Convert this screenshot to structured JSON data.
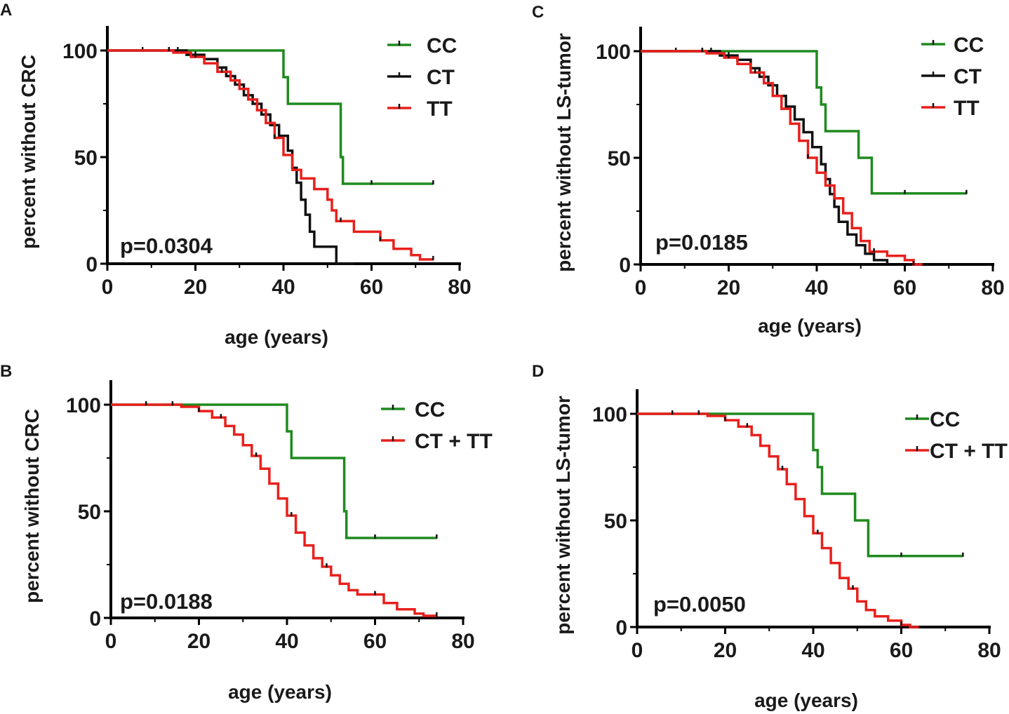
{
  "chart_data": [
    {
      "panel": "A",
      "type": "line",
      "subtype": "kaplan-meier",
      "xlabel": "age (years)",
      "ylabel": "percent without CRC",
      "xlim": [
        0,
        80
      ],
      "ylim": [
        0,
        100
      ],
      "xticks": [
        "0",
        "20",
        "40",
        "60",
        "80"
      ],
      "yticks": [
        "0",
        "50",
        "100"
      ],
      "pvalue": "p=0.0304",
      "legend_position": "top-right",
      "series": [
        {
          "name": "CC",
          "color": "#1f8a1f",
          "x": [
            0,
            40,
            40,
            41,
            41,
            53,
            53,
            53.5,
            53.5,
            74
          ],
          "y": [
            100,
            100,
            87.5,
            87.5,
            75,
            75,
            50,
            50,
            37.5,
            37.5
          ],
          "censors": [
            60,
            74
          ]
        },
        {
          "name": "CT",
          "color": "#111111",
          "x": [
            0,
            18,
            18,
            22,
            22,
            25,
            25,
            27,
            27,
            29,
            29,
            31,
            31,
            33,
            33,
            35,
            35,
            37,
            37,
            39,
            39,
            41,
            41,
            42,
            42,
            43,
            43,
            44,
            44,
            45,
            45,
            46,
            46,
            47,
            47,
            52,
            52,
            56,
            56
          ],
          "y": [
            100,
            100,
            98,
            98,
            96,
            96,
            92,
            92,
            88,
            88,
            84,
            84,
            79,
            79,
            75,
            75,
            70,
            70,
            65,
            65,
            60,
            60,
            53,
            53,
            45,
            45,
            38,
            38,
            30,
            30,
            23,
            23,
            15,
            15,
            8,
            8,
            0,
            0,
            0
          ],
          "censors": [
            8,
            14,
            16,
            20,
            25
          ]
        },
        {
          "name": "TT",
          "color": "#e8201c",
          "x": [
            0,
            15,
            15,
            19,
            19,
            22,
            22,
            25,
            25,
            28,
            28,
            30,
            30,
            32,
            32,
            34,
            34,
            36,
            36,
            38,
            38,
            40,
            40,
            42,
            42,
            44,
            44,
            47,
            47,
            50,
            50,
            51,
            51,
            52,
            52,
            56,
            56,
            62,
            62,
            65,
            65,
            69,
            69,
            71,
            71,
            74
          ],
          "y": [
            100,
            100,
            99,
            99,
            97,
            97,
            94,
            94,
            90,
            90,
            86,
            86,
            82,
            82,
            77,
            77,
            72,
            72,
            66,
            66,
            59,
            59,
            51,
            51,
            44,
            44,
            40,
            40,
            35,
            35,
            30,
            30,
            25,
            25,
            20,
            20,
            15,
            15,
            11,
            11,
            7,
            7,
            4,
            4,
            2,
            2
          ],
          "censors": [
            14,
            20,
            26,
            38,
            53,
            62,
            74
          ]
        }
      ]
    },
    {
      "panel": "B",
      "type": "line",
      "subtype": "kaplan-meier",
      "xlabel": "age (years)",
      "ylabel": "percent without CRC",
      "xlim": [
        0,
        80
      ],
      "ylim": [
        0,
        100
      ],
      "xticks": [
        "0",
        "20",
        "40",
        "60",
        "80"
      ],
      "yticks": [
        "0",
        "50",
        "100"
      ],
      "pvalue": "p=0.0188",
      "legend_position": "top-right",
      "series": [
        {
          "name": "CC",
          "color": "#1f8a1f",
          "x": [
            0,
            40,
            40,
            41,
            41,
            53,
            53,
            53.5,
            53.5,
            74
          ],
          "y": [
            100,
            100,
            87.5,
            87.5,
            75,
            75,
            50,
            50,
            37.5,
            37.5
          ],
          "censors": [
            60,
            74
          ]
        },
        {
          "name": "CT + TT",
          "color": "#e8201c",
          "x": [
            0,
            16,
            16,
            20,
            20,
            23,
            23,
            26,
            26,
            28,
            28,
            30,
            30,
            32,
            32,
            34,
            34,
            36,
            36,
            38,
            38,
            40,
            40,
            42,
            42,
            44,
            44,
            46,
            46,
            48,
            48,
            50,
            50,
            52,
            52,
            54,
            54,
            56,
            56,
            62,
            62,
            65,
            65,
            69,
            69,
            71,
            71,
            74
          ],
          "y": [
            100,
            100,
            99,
            99,
            97,
            97,
            94,
            94,
            90,
            90,
            86,
            86,
            81,
            81,
            76,
            76,
            70,
            70,
            63,
            63,
            56,
            56,
            48,
            48,
            40,
            40,
            34,
            34,
            28,
            28,
            24,
            24,
            20,
            20,
            16,
            16,
            13,
            13,
            11,
            11,
            7,
            7,
            4,
            4,
            2,
            2,
            1,
            1
          ],
          "censors": [
            8,
            14,
            20,
            25,
            33,
            41,
            49,
            60,
            74
          ]
        }
      ]
    },
    {
      "panel": "C",
      "type": "line",
      "subtype": "kaplan-meier",
      "xlabel": "age (years)",
      "ylabel": "percent without  LS-tumor",
      "xlim": [
        0,
        80
      ],
      "ylim": [
        0,
        100
      ],
      "xticks": [
        "0",
        "20",
        "40",
        "60",
        "80"
      ],
      "yticks": [
        "0",
        "50",
        "100"
      ],
      "pvalue": "p=0.0185",
      "legend_position": "top-right",
      "series": [
        {
          "name": "CC",
          "color": "#1f8a1f",
          "x": [
            0,
            40,
            40,
            41,
            41,
            42,
            42,
            49.5,
            49.5,
            52.5,
            52.5,
            74
          ],
          "y": [
            100,
            100,
            83,
            83,
            75,
            75,
            62.5,
            62.5,
            50,
            50,
            33.3,
            33.3
          ],
          "censors": [
            60,
            74
          ]
        },
        {
          "name": "CT",
          "color": "#111111",
          "x": [
            0,
            18,
            18,
            22,
            22,
            25,
            25,
            27,
            27,
            29,
            29,
            31,
            31,
            33,
            33,
            35,
            35,
            37,
            37,
            39,
            39,
            41,
            41,
            42,
            42,
            43,
            43,
            44,
            44,
            45,
            45,
            47,
            47,
            49,
            49,
            51,
            51,
            53,
            53,
            56,
            56
          ],
          "y": [
            100,
            100,
            98,
            98,
            96,
            96,
            92,
            92,
            88,
            88,
            84,
            84,
            79,
            79,
            74,
            74,
            68,
            68,
            62,
            62,
            55,
            55,
            47,
            47,
            40,
            40,
            33,
            33,
            27,
            27,
            20,
            20,
            14,
            14,
            9,
            9,
            5,
            5,
            2,
            2,
            0
          ],
          "censors": [
            8,
            14,
            16,
            20,
            25
          ]
        },
        {
          "name": "TT",
          "color": "#e8201c",
          "x": [
            0,
            15,
            15,
            19,
            19,
            22,
            22,
            25,
            25,
            28,
            28,
            30,
            30,
            32,
            32,
            34,
            34,
            36,
            36,
            38,
            38,
            40,
            40,
            42,
            42,
            44,
            44,
            46,
            46,
            48,
            48,
            50,
            50,
            52,
            52,
            56,
            56,
            60,
            60,
            62,
            62,
            64
          ],
          "y": [
            100,
            100,
            99,
            99,
            97,
            97,
            94,
            94,
            90,
            90,
            85,
            85,
            79,
            79,
            73,
            73,
            66,
            66,
            58,
            58,
            50,
            50,
            43,
            43,
            37,
            37,
            31,
            31,
            24,
            24,
            17,
            17,
            11,
            11,
            6,
            6,
            4,
            4,
            2,
            2,
            0,
            0
          ],
          "censors": [
            14,
            20,
            26,
            38,
            53,
            62
          ]
        }
      ]
    },
    {
      "panel": "D",
      "type": "line",
      "subtype": "kaplan-meier",
      "xlabel": "age (years)",
      "ylabel": "percent without  LS-tumor",
      "xlim": [
        0,
        80
      ],
      "ylim": [
        0,
        100
      ],
      "xticks": [
        "0",
        "20",
        "40",
        "60",
        "80"
      ],
      "yticks": [
        "0",
        "50",
        "100"
      ],
      "pvalue": "p=0.0050",
      "legend_position": "top-right",
      "series": [
        {
          "name": "CC",
          "color": "#1f8a1f",
          "x": [
            0,
            40,
            40,
            41,
            41,
            42,
            42,
            49.5,
            49.5,
            52.5,
            52.5,
            74
          ],
          "y": [
            100,
            100,
            83,
            83,
            75,
            75,
            62.5,
            62.5,
            50,
            50,
            33.3,
            33.3
          ],
          "censors": [
            60,
            74
          ]
        },
        {
          "name": "CT + TT",
          "color": "#e8201c",
          "x": [
            0,
            16,
            16,
            20,
            20,
            23,
            23,
            26,
            26,
            28,
            28,
            30,
            30,
            32,
            32,
            34,
            34,
            36,
            36,
            38,
            38,
            40,
            40,
            42,
            42,
            44,
            44,
            46,
            46,
            48,
            48,
            50,
            50,
            52,
            52,
            54,
            54,
            57,
            57,
            60,
            60,
            62,
            62,
            64
          ],
          "y": [
            100,
            100,
            99,
            99,
            97,
            97,
            94,
            94,
            90,
            90,
            85,
            85,
            80,
            80,
            74,
            74,
            67,
            67,
            60,
            60,
            52,
            52,
            44,
            44,
            37,
            37,
            30,
            30,
            23,
            23,
            18,
            18,
            12,
            12,
            8,
            8,
            5,
            5,
            3,
            3,
            1,
            1,
            0,
            0
          ],
          "censors": [
            8,
            14,
            20,
            25,
            33,
            41,
            49,
            60
          ]
        }
      ]
    }
  ]
}
